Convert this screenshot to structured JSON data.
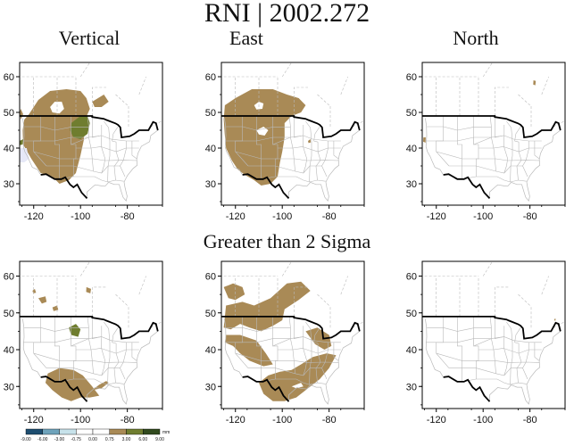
{
  "title": "RNI | 2002.272",
  "columns": [
    "Vertical",
    "East",
    "North"
  ],
  "row2_title": "Greater than 2 Sigma",
  "axes": {
    "x_ticks": [
      "-120",
      "-100",
      "-80"
    ],
    "y_ticks": [
      "30",
      "40",
      "50",
      "60"
    ]
  },
  "colorbar": {
    "unit": "mm",
    "labels": [
      "-9.00",
      "-6.00",
      "-3.00",
      "-0.75",
      "0.00",
      "0.75",
      "3.00",
      "6.00",
      "9.00"
    ],
    "colors": [
      "#1e4e70",
      "#6fa3bb",
      "#c7e2ea",
      "#ffffff",
      "#ffffff",
      "#a98a56",
      "#6f7d2f",
      "#314a1e"
    ]
  }
}
